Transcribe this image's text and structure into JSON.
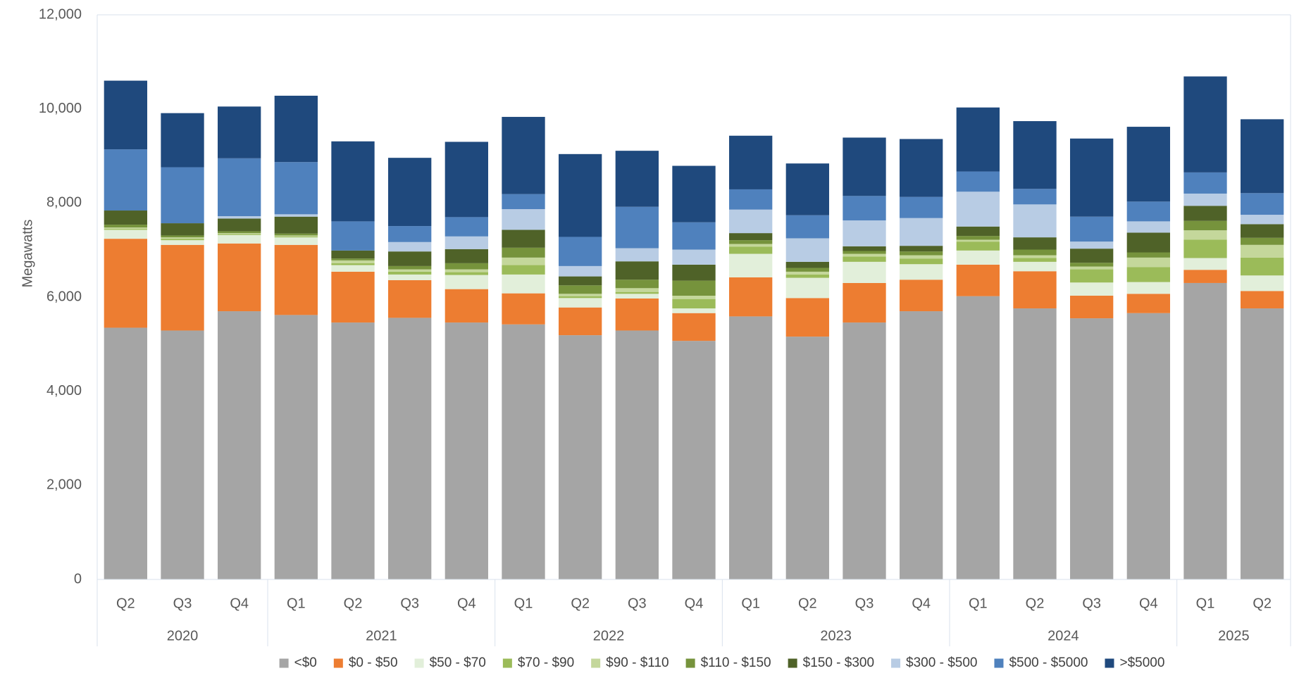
{
  "chart_data": {
    "type": "bar",
    "stacked": true,
    "ylabel": "Megawatts",
    "ylim": [
      0,
      12000
    ],
    "yticks": [
      0,
      2000,
      4000,
      6000,
      8000,
      10000,
      12000
    ],
    "ytick_labels": [
      "0",
      "2,000",
      "4,000",
      "6,000",
      "8,000",
      "10,000",
      "12,000"
    ],
    "grid": false,
    "legend_position": "bottom",
    "categories": [
      "Q2",
      "Q3",
      "Q4",
      "Q1",
      "Q2",
      "Q3",
      "Q4",
      "Q1",
      "Q2",
      "Q3",
      "Q4",
      "Q1",
      "Q2",
      "Q3",
      "Q4",
      "Q1",
      "Q2",
      "Q3",
      "Q4",
      "Q1",
      "Q2"
    ],
    "year_groups": [
      {
        "label": "2020",
        "count": 3
      },
      {
        "label": "2021",
        "count": 4
      },
      {
        "label": "2022",
        "count": 4
      },
      {
        "label": "2023",
        "count": 4
      },
      {
        "label": "2024",
        "count": 4
      },
      {
        "label": "2025",
        "count": 2
      }
    ],
    "series": [
      {
        "name": "<$0",
        "color": "#a5a5a5",
        "values": [
          5350,
          5290,
          5700,
          5620,
          5460,
          5560,
          5460,
          5420,
          5190,
          5290,
          5070,
          5590,
          5160,
          5460,
          5700,
          6020,
          5760,
          5550,
          5660,
          6300,
          5760
        ]
      },
      {
        "name": "$0 - $50",
        "color": "#ed7d31",
        "values": [
          1890,
          1820,
          1440,
          1490,
          1080,
          800,
          710,
          660,
          590,
          680,
          590,
          830,
          820,
          840,
          670,
          670,
          790,
          480,
          410,
          280,
          370
        ]
      },
      {
        "name": "$50 - $70",
        "color": "#e2efda",
        "values": [
          190,
          100,
          180,
          160,
          140,
          120,
          300,
          400,
          200,
          100,
          100,
          500,
          430,
          450,
          330,
          300,
          200,
          280,
          250,
          250,
          330
        ]
      },
      {
        "name": "$70 - $90",
        "color": "#9bbb59",
        "values": [
          20,
          30,
          20,
          20,
          40,
          60,
          60,
          200,
          40,
          40,
          200,
          150,
          70,
          110,
          120,
          190,
          80,
          280,
          320,
          390,
          380
        ]
      },
      {
        "name": "$90 - $110",
        "color": "#c4d79b",
        "values": [
          30,
          30,
          20,
          20,
          60,
          50,
          60,
          160,
          50,
          80,
          70,
          60,
          60,
          60,
          70,
          40,
          60,
          60,
          200,
          200,
          270
        ]
      },
      {
        "name": "$110 - $150",
        "color": "#76933c",
        "values": [
          60,
          40,
          40,
          40,
          40,
          70,
          130,
          210,
          180,
          180,
          320,
          80,
          80,
          60,
          80,
          80,
          120,
          80,
          110,
          200,
          150
        ]
      },
      {
        "name": "$150 - $300",
        "color": "#4f6228",
        "values": [
          300,
          260,
          270,
          360,
          170,
          310,
          300,
          380,
          190,
          390,
          340,
          150,
          130,
          100,
          120,
          200,
          260,
          300,
          420,
          320,
          290
        ]
      },
      {
        "name": "$300 - $500",
        "color": "#b8cce4",
        "values": [
          0,
          0,
          50,
          50,
          0,
          200,
          270,
          440,
          220,
          280,
          320,
          500,
          500,
          550,
          590,
          740,
          700,
          150,
          240,
          260,
          200
        ]
      },
      {
        "name": "$500 - $5000",
        "color": "#4f81bd",
        "values": [
          1300,
          1190,
          1230,
          1110,
          620,
          340,
          410,
          320,
          620,
          880,
          580,
          430,
          490,
          520,
          450,
          430,
          330,
          530,
          420,
          450,
          460
        ]
      },
      {
        "name": ">$5000",
        "color": "#1f497d",
        "values": [
          1460,
          1150,
          1100,
          1410,
          1700,
          1450,
          1600,
          1640,
          1760,
          1190,
          1200,
          1140,
          1100,
          1240,
          1230,
          1360,
          1440,
          1660,
          1590,
          2040,
          1570
        ]
      }
    ]
  }
}
